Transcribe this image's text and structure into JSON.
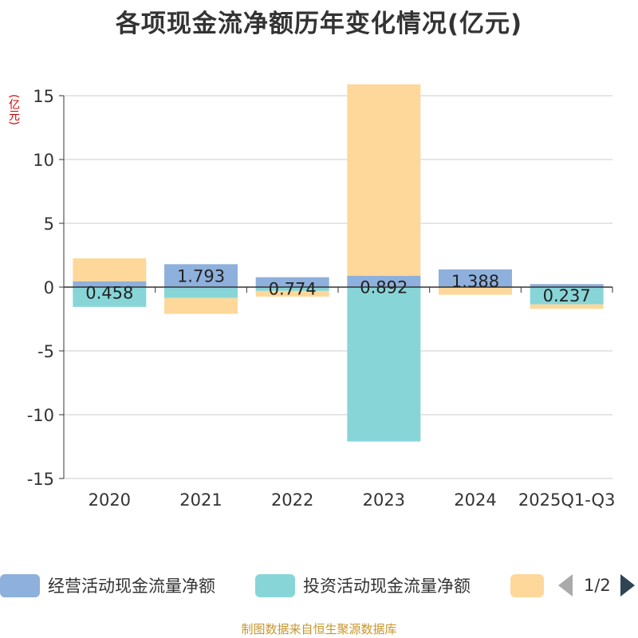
{
  "chart_data": {
    "type": "bar",
    "title": "各项现金流净额历年变化情况(亿元)",
    "ylabel": "(亿元)",
    "xlabel": "",
    "ylim": [
      -15,
      15
    ],
    "yticks": [
      15,
      10,
      5,
      0,
      -5,
      -10,
      -15
    ],
    "categories": [
      "2020",
      "2021",
      "2022",
      "2023",
      "2024",
      "2025Q1-Q3"
    ],
    "series": [
      {
        "name": "经营活动现金流量净额",
        "color": "#8eb0dc",
        "values": [
          0.458,
          1.793,
          0.774,
          0.892,
          1.388,
          0.237
        ],
        "labels": [
          "0.458",
          "1.793",
          "0.774",
          "0.892",
          "1.388",
          "0.237"
        ]
      },
      {
        "name": "投资活动现金流量净额",
        "color": "#88d5d8",
        "values": [
          -1.55,
          -0.85,
          -0.3,
          -12.1,
          -0.05,
          -1.35
        ]
      },
      {
        "name": "",
        "color": "#fdd89a",
        "values": [
          1.8,
          -1.25,
          -0.45,
          15.0,
          -0.55,
          -0.35
        ]
      }
    ],
    "legend_position": "bottom"
  },
  "legend": {
    "items": [
      "经营活动现金流量净额",
      "投资活动现金流量净额",
      ""
    ],
    "page_indicator": "1/2"
  },
  "source": "制图数据来自恒生聚源数据库"
}
